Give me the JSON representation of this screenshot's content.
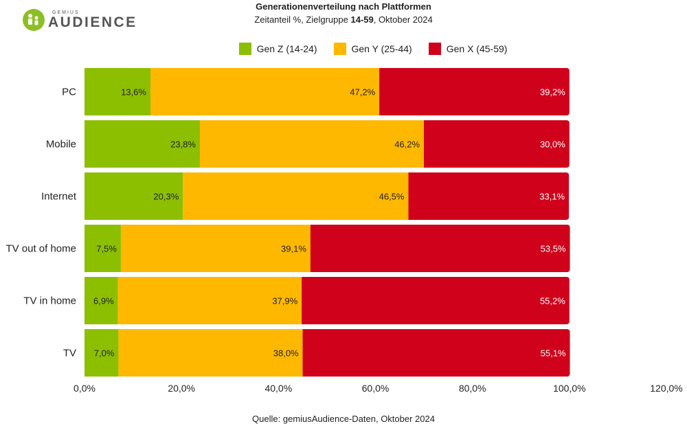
{
  "logo": {
    "small": "GEMIUS",
    "big": "AUDIENCE"
  },
  "colors": {
    "gen_z": "#8cbf00",
    "gen_y": "#ffb800",
    "gen_x": "#d0021b"
  },
  "chart_data": {
    "type": "bar",
    "orientation": "horizontal",
    "stacked": true,
    "title": "Generationenverteilung nach Plattformen",
    "subtitle": {
      "pre": "Zeitanteil %, Zielgruppe ",
      "bold": "14-59",
      "post": ", Oktober 2024"
    },
    "categories": [
      "PC",
      "Mobile",
      "Internet",
      "TV out of home",
      "TV in home",
      "TV"
    ],
    "series": [
      {
        "name": "Gen Z (14-24)",
        "values": [
          13.6,
          23.8,
          20.3,
          7.5,
          6.9,
          7.0
        ],
        "labels": [
          "13,6%",
          "23,8%",
          "20,3%",
          "7,5%",
          "6,9%",
          "7,0%"
        ]
      },
      {
        "name": "Gen Y (25-44)",
        "values": [
          47.2,
          46.2,
          46.5,
          39.1,
          37.9,
          38.0
        ],
        "labels": [
          "47,2%",
          "46,2%",
          "46,5%",
          "39,1%",
          "37,9%",
          "38,0%"
        ]
      },
      {
        "name": "Gen X (45-59)",
        "values": [
          39.2,
          30.0,
          33.1,
          53.5,
          55.2,
          55.1
        ],
        "labels": [
          "39,2%",
          "30,0%",
          "33,1%",
          "53,5%",
          "55,2%",
          "55,1%"
        ]
      }
    ],
    "xlim": [
      0,
      120
    ],
    "xticks": [
      0,
      20,
      40,
      60,
      80,
      100,
      120
    ],
    "xtick_labels": [
      "0,0%",
      "20,0%",
      "40,0%",
      "60,0%",
      "80,0%",
      "100,0%",
      "120,0%"
    ],
    "legend_position": "top-center",
    "grid": false
  },
  "source": "Quelle: gemiusAudience-Daten, Oktober 2024"
}
